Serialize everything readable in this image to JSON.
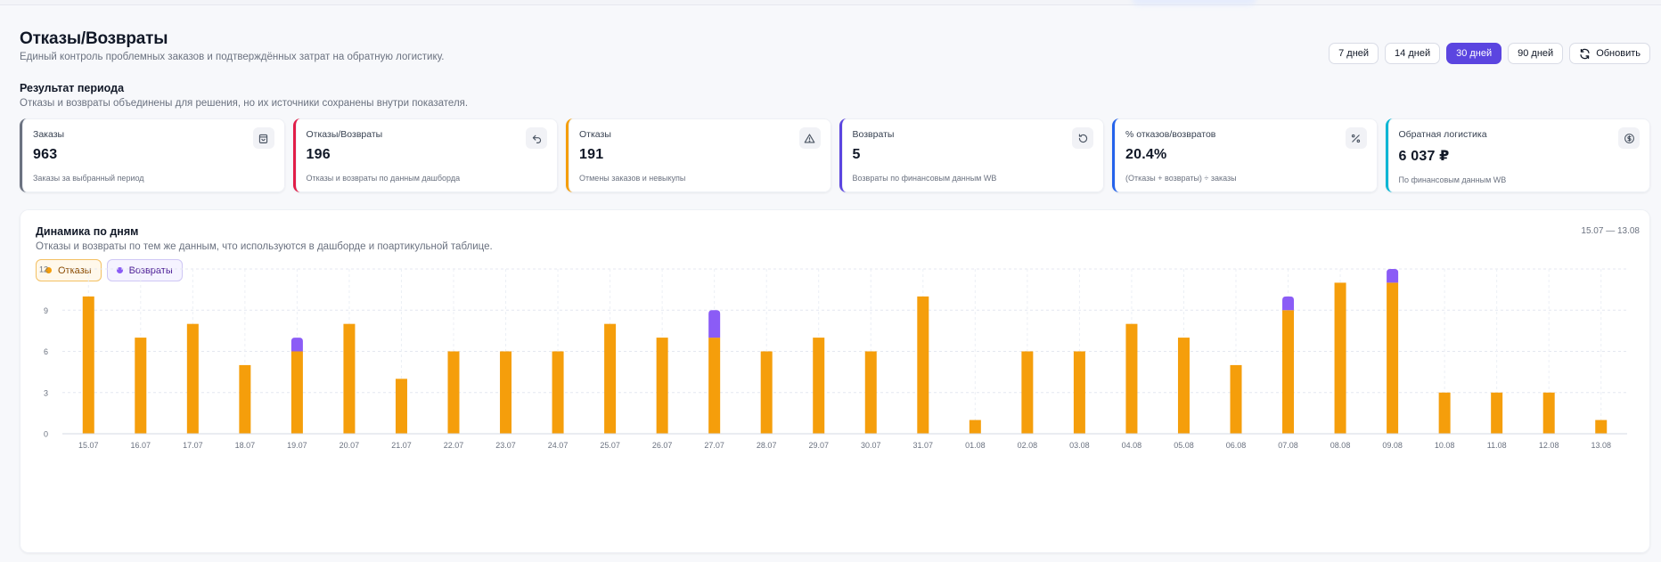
{
  "header": {
    "title": "Отказы/Возвраты",
    "subtitle": "Единый контроль проблемных заказов и подтверждённых затрат на обратную логистику."
  },
  "periods": {
    "items": [
      {
        "label": "7 дней",
        "active": false
      },
      {
        "label": "14 дней",
        "active": false
      },
      {
        "label": "30 дней",
        "active": true
      },
      {
        "label": "90 дней",
        "active": false
      }
    ],
    "refresh_label": "Обновить"
  },
  "summary": {
    "title": "Результат периода",
    "subtitle": "Отказы и возвраты объединены для решения, но их источники сохранены внутри показателя."
  },
  "kpis": [
    {
      "label": "Заказы",
      "value": "963",
      "note": "Заказы за выбранный период",
      "accent": "#6b7280",
      "icon": "bag-icon"
    },
    {
      "label": "Отказы/Возвраты",
      "value": "196",
      "note": "Отказы и возвраты по данным дашборда",
      "accent": "#e11d48",
      "icon": "undo-icon"
    },
    {
      "label": "Отказы",
      "value": "191",
      "note": "Отмены заказов и невыкупы",
      "accent": "#f59e0b",
      "icon": "warning-icon"
    },
    {
      "label": "Возвраты",
      "value": "5",
      "note": "Возвраты по финансовым данным WB",
      "accent": "#5b45e0",
      "icon": "rotate-icon"
    },
    {
      "label": "% отказов/возвратов",
      "value": "20.4%",
      "note": "(Отказы + возвраты) ÷ заказы",
      "accent": "#2563eb",
      "icon": "percent-icon"
    },
    {
      "label": "Обратная логистика",
      "value": "6 037 ₽",
      "note": "По финансовым данным WB",
      "accent": "#06b6d4",
      "icon": "coin-icon"
    }
  ],
  "chart_section": {
    "title": "Динамика по дням",
    "subtitle": "Отказы и возвраты по тем же данным, что используются в дашборде и поартикульной таблице.",
    "range": "15.07 — 13.08",
    "legend": [
      {
        "label": "Отказы",
        "color": "#f59e0b"
      },
      {
        "label": "Возвраты",
        "color": "#8b5cf6"
      }
    ]
  },
  "chart_data": {
    "type": "bar",
    "stacked": true,
    "categories": [
      "15.07",
      "16.07",
      "17.07",
      "18.07",
      "19.07",
      "20.07",
      "21.07",
      "22.07",
      "23.07",
      "24.07",
      "25.07",
      "26.07",
      "27.07",
      "28.07",
      "29.07",
      "30.07",
      "31.07",
      "01.08",
      "02.08",
      "03.08",
      "04.08",
      "05.08",
      "06.08",
      "07.08",
      "08.08",
      "09.08",
      "10.08",
      "11.08",
      "12.08",
      "13.08"
    ],
    "series": [
      {
        "name": "Отказы",
        "color": "#f59e0b",
        "values": [
          10,
          7,
          8,
          5,
          6,
          8,
          4,
          6,
          6,
          6,
          8,
          7,
          7,
          6,
          7,
          6,
          10,
          1,
          6,
          6,
          8,
          7,
          5,
          9,
          11,
          11,
          3,
          3,
          3,
          1
        ]
      },
      {
        "name": "Возвраты",
        "color": "#8b5cf6",
        "values": [
          0,
          0,
          0,
          0,
          1,
          0,
          0,
          0,
          0,
          0,
          0,
          0,
          2,
          0,
          0,
          0,
          0,
          0,
          0,
          0,
          0,
          0,
          0,
          1,
          0,
          1,
          0,
          0,
          0,
          0
        ]
      }
    ],
    "yticks": [
      0,
      3,
      6,
      9,
      12
    ],
    "ylim": [
      0,
      12
    ],
    "grid": true
  }
}
